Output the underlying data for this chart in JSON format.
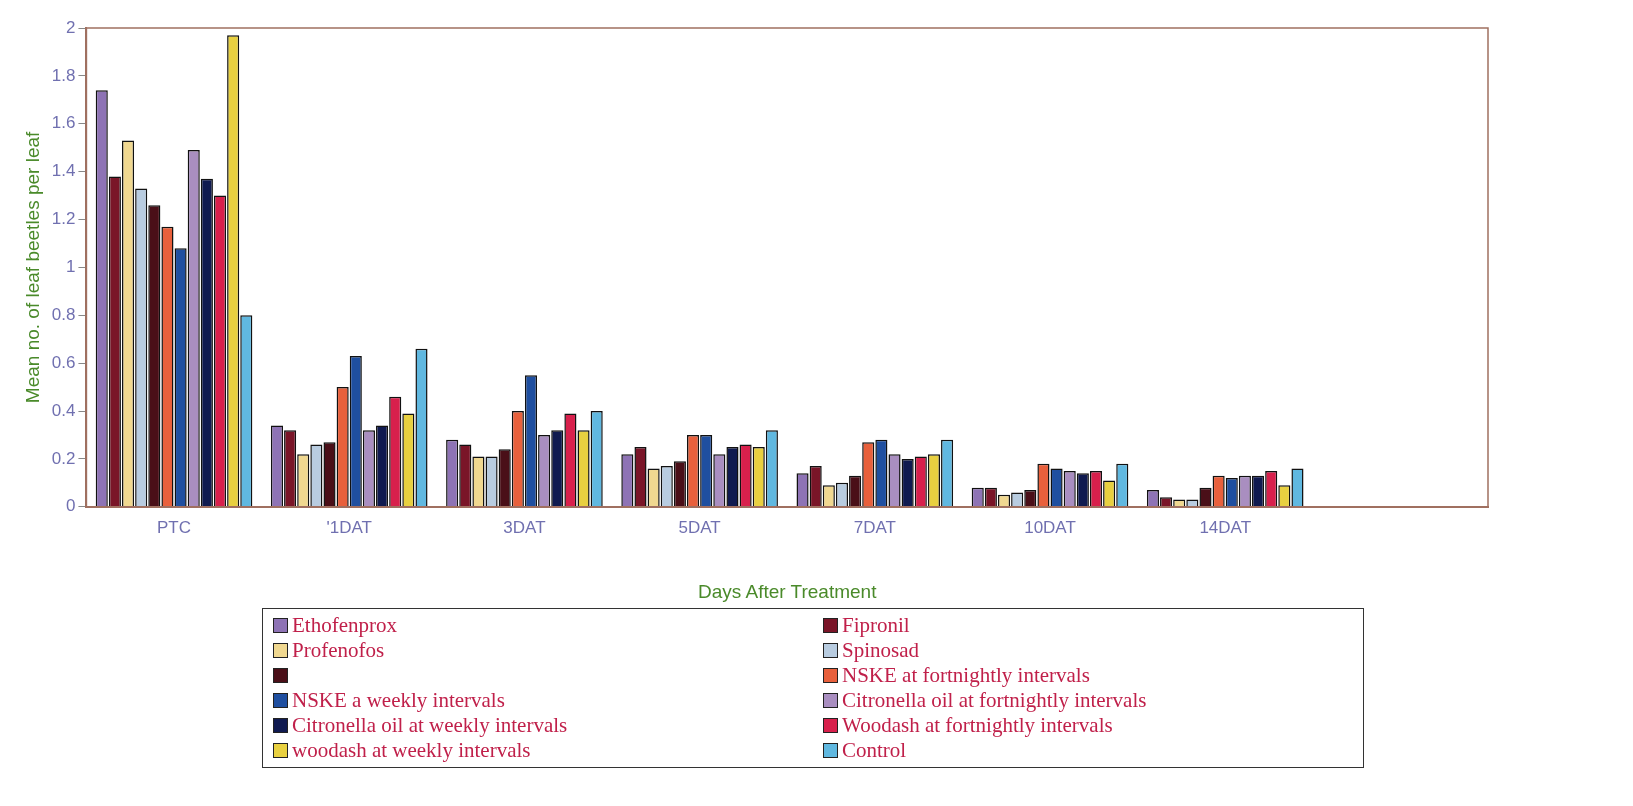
{
  "chart_data": {
    "type": "bar",
    "xlabel": "Days After Treatment",
    "ylabel": "Mean no. of leaf beetles per leaf",
    "categories": [
      "PTC",
      "'1DAT",
      "3DAT",
      "5DAT",
      "7DAT",
      "10DAT",
      "14DAT",
      null
    ],
    "ylim": [
      0,
      2
    ],
    "yticks": [
      0,
      0.2,
      0.4,
      0.6,
      0.8,
      1,
      1.2,
      1.4,
      1.6,
      1.8,
      2
    ],
    "grid": false,
    "legend": "bottom",
    "series": [
      {
        "name": "Ethofenprox",
        "color": "#8e73b5",
        "values": [
          1.74,
          0.34,
          0.28,
          0.22,
          0.14,
          0.08,
          0.07,
          null
        ]
      },
      {
        "name": "Fipronil",
        "color": "#7a1528",
        "values": [
          1.38,
          0.32,
          0.26,
          0.25,
          0.17,
          0.08,
          0.04,
          null
        ]
      },
      {
        "name": "Profenofos",
        "color": "#f0d890",
        "values": [
          1.53,
          0.22,
          0.21,
          0.16,
          0.09,
          0.05,
          0.03,
          null
        ]
      },
      {
        "name": "Spinosad",
        "color": "#b8cce0",
        "values": [
          1.33,
          0.26,
          0.21,
          0.17,
          0.1,
          0.06,
          0.03,
          null
        ]
      },
      {
        "color": "#4a0f18",
        "values": [
          1.26,
          0.27,
          0.24,
          0.19,
          0.13,
          0.07,
          0.08,
          null
        ]
      },
      {
        "name": "NSKE at fortnightly intervals",
        "color": "#e8603c",
        "values": [
          1.17,
          0.5,
          0.4,
          0.3,
          0.27,
          0.18,
          0.13,
          null
        ]
      },
      {
        "name": "NSKE a weekly intervals",
        "color": "#1f4fa0",
        "values": [
          1.08,
          0.63,
          0.55,
          0.3,
          0.28,
          0.16,
          0.12,
          null
        ]
      },
      {
        "name": "Citronella oil at fortnightly intervals",
        "color": "#a98ec0",
        "values": [
          1.49,
          0.32,
          0.3,
          0.22,
          0.22,
          0.15,
          0.13,
          null
        ]
      },
      {
        "name": "Citronella oil at weekly intervals",
        "color": "#101a50",
        "values": [
          1.37,
          0.34,
          0.32,
          0.25,
          0.2,
          0.14,
          0.13,
          null
        ]
      },
      {
        "name": "Woodash at fortnightly intervals",
        "color": "#d8204c",
        "values": [
          1.3,
          0.46,
          0.39,
          0.26,
          0.21,
          0.15,
          0.15,
          null
        ]
      },
      {
        "name": "woodash at weekly intervals",
        "color": "#e8d040",
        "values": [
          1.97,
          0.39,
          0.32,
          0.25,
          0.22,
          0.11,
          0.09,
          null
        ]
      },
      {
        "name": "Control",
        "color": "#60b8e0",
        "values": [
          0.8,
          0.66,
          0.4,
          0.32,
          0.28,
          0.18,
          0.16,
          null
        ]
      }
    ]
  }
}
